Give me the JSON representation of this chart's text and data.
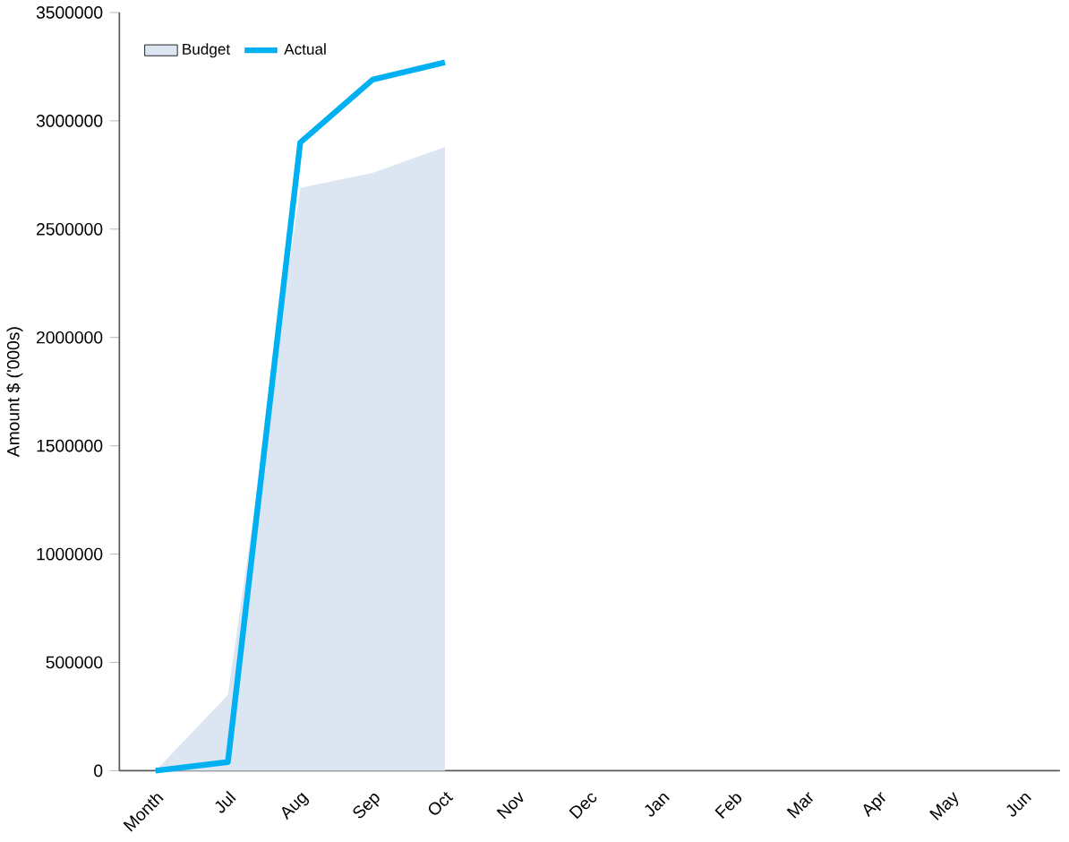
{
  "chart_data": {
    "type": "line",
    "ylabel": "Amount $ ('000s)",
    "categories": [
      "Month",
      "Jul",
      "Aug",
      "Sep",
      "Oct",
      "Nov",
      "Dec",
      "Jan",
      "Feb",
      "Mar",
      "Apr",
      "May",
      "Jun"
    ],
    "series": [
      {
        "name": "Budget",
        "type": "area",
        "color": "#dce6f2",
        "values": [
          0,
          350000,
          2690000,
          2760000,
          2880000,
          null,
          null,
          null,
          null,
          null,
          null,
          null,
          null
        ]
      },
      {
        "name": "Actual",
        "color": "#00b0f0",
        "values": [
          0,
          40000,
          2900000,
          3190000,
          3270000,
          null,
          null,
          null,
          null,
          null,
          null,
          null,
          null
        ]
      }
    ],
    "ylim": [
      0,
      3500000
    ],
    "yticks": [
      0,
      500000,
      1000000,
      1500000,
      2000000,
      2500000,
      3000000,
      3500000
    ],
    "grid": false,
    "legend": "top left",
    "marker": "none",
    "line_style": "solid"
  }
}
